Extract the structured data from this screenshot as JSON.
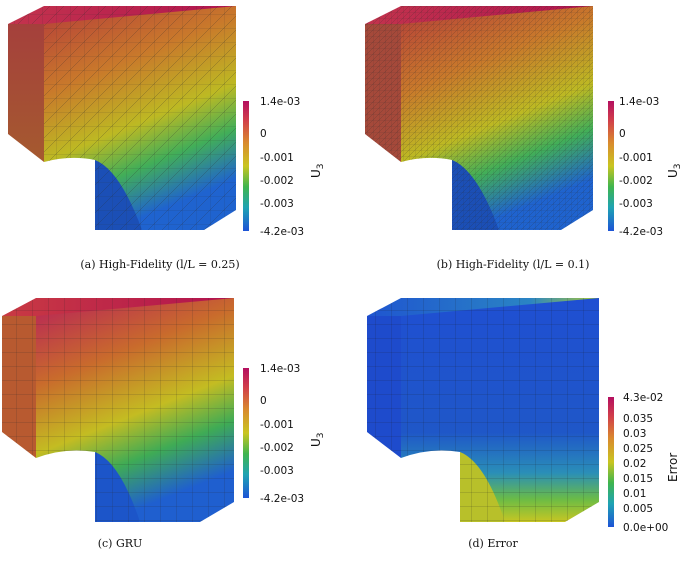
{
  "panels": [
    {
      "caption": "(a) High-Fidelity (l/L = 0.25)",
      "field_label": "U",
      "field_subscript": "3",
      "colorbar_ticks": [
        "1.4e-03",
        "0",
        "-0.001",
        "-0.002",
        "-0.003",
        "-4.2e-03"
      ],
      "colorbar_tick_values": [
        0.0014,
        0,
        -0.001,
        -0.002,
        -0.003,
        -0.0042
      ],
      "colorbar_range": [
        -0.0042,
        0.0014
      ],
      "colormap": "jet-like",
      "mesh": "coarse-tetrahedral"
    },
    {
      "caption": "(b) High-Fidelity (l/L = 0.1)",
      "field_label": "U",
      "field_subscript": "3",
      "colorbar_ticks": [
        "1.4e-03",
        "0",
        "-0.001",
        "-0.002",
        "-0.003",
        "-4.2e-03"
      ],
      "colorbar_tick_values": [
        0.0014,
        0,
        -0.001,
        -0.002,
        -0.003,
        -0.0042
      ],
      "colorbar_range": [
        -0.0042,
        0.0014
      ],
      "colormap": "jet-like",
      "mesh": "fine-tetrahedral"
    },
    {
      "caption": "(c) GRU",
      "field_label": "U",
      "field_subscript": "3",
      "colorbar_ticks": [
        "1.4e-03",
        "0",
        "-0.001",
        "-0.002",
        "-0.003",
        "-4.2e-03"
      ],
      "colorbar_tick_values": [
        0.0014,
        0,
        -0.001,
        -0.002,
        -0.003,
        -0.0042
      ],
      "colorbar_range": [
        -0.0042,
        0.0014
      ],
      "colormap": "jet-like",
      "mesh": "hexahedral"
    },
    {
      "caption": "(d) Error",
      "field_label": "Error",
      "field_subscript": "",
      "colorbar_ticks": [
        "4.3e-02",
        "0.035",
        "0.03",
        "0.025",
        "0.02",
        "0.015",
        "0.01",
        "0.005",
        "0.0e+00"
      ],
      "colorbar_tick_values": [
        0.043,
        0.035,
        0.03,
        0.025,
        0.02,
        0.015,
        0.01,
        0.005,
        0
      ],
      "colorbar_range": [
        0,
        0.043
      ],
      "colormap": "jet-like",
      "mesh": "hexahedral"
    }
  ],
  "colors": {
    "red": "#b4124f",
    "magenta": "#c0245a",
    "orange": "#c2702c",
    "yellow": "#c9c221",
    "green": "#3fae52",
    "cyan": "#1f9fb0",
    "blue": "#1f5fcf",
    "navy": "#1d4fd6"
  }
}
